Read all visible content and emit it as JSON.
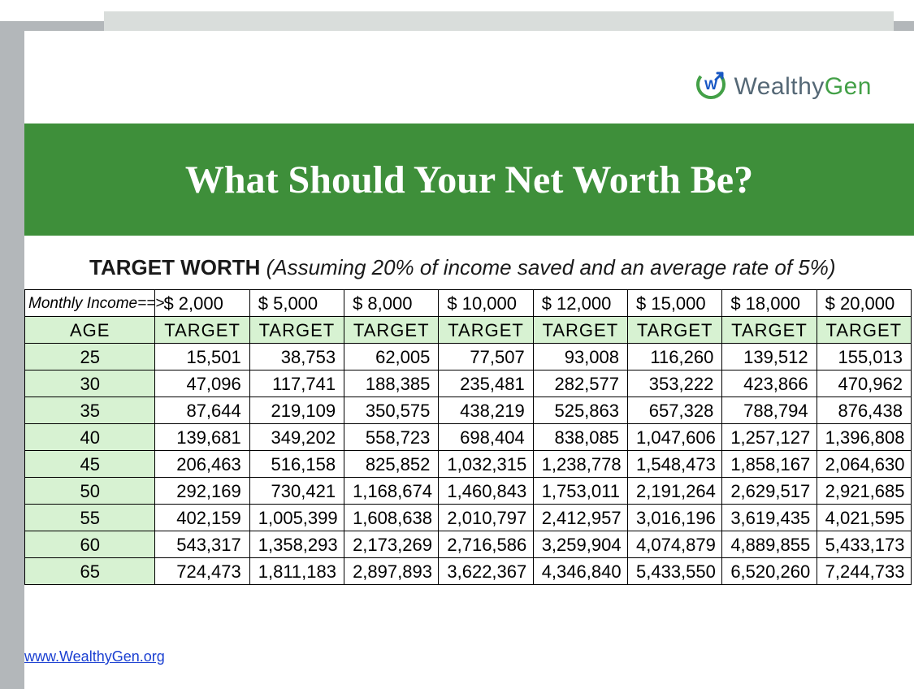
{
  "logo": {
    "brand_a": "Wealthy",
    "brand_b": "Gen",
    "icon_letter": "W"
  },
  "banner": {
    "title": "What Should Your Net Worth Be?"
  },
  "subhead": {
    "bold": "TARGET WORTH",
    "italic": " (Assuming 20% of income saved and an average rate of 5%)"
  },
  "table": {
    "type": "table",
    "monthly_income_label": "Monthly Income==>",
    "age_label": "AGE",
    "target_label": "TARGET",
    "income_columns": [
      "$  2,000",
      "$  5,000",
      "$  8,000",
      "$ 10,000",
      "$ 12,000",
      "$ 15,000",
      "$ 18,000",
      "$ 20,000"
    ],
    "ages": [
      "25",
      "30",
      "35",
      "40",
      "45",
      "50",
      "55",
      "60",
      "65"
    ],
    "rows": [
      [
        "15,501",
        "38,753",
        "62,005",
        "77,507",
        "93,008",
        "116,260",
        "139,512",
        "155,013"
      ],
      [
        "47,096",
        "117,741",
        "188,385",
        "235,481",
        "282,577",
        "353,222",
        "423,866",
        "470,962"
      ],
      [
        "87,644",
        "219,109",
        "350,575",
        "438,219",
        "525,863",
        "657,328",
        "788,794",
        "876,438"
      ],
      [
        "139,681",
        "349,202",
        "558,723",
        "698,404",
        "838,085",
        "1,047,606",
        "1,257,127",
        "1,396,808"
      ],
      [
        "206,463",
        "516,158",
        "825,852",
        "1,032,315",
        "1,238,778",
        "1,548,473",
        "1,858,167",
        "2,064,630"
      ],
      [
        "292,169",
        "730,421",
        "1,168,674",
        "1,460,843",
        "1,753,011",
        "2,191,264",
        "2,629,517",
        "2,921,685"
      ],
      [
        "402,159",
        "1,005,399",
        "1,608,638",
        "2,010,797",
        "2,412,957",
        "3,016,196",
        "3,619,435",
        "4,021,595"
      ],
      [
        "543,317",
        "1,358,293",
        "2,173,269",
        "2,716,586",
        "3,259,904",
        "4,074,879",
        "4,889,855",
        "5,433,173"
      ],
      [
        "724,473",
        "1,811,183",
        "2,897,893",
        "3,622,367",
        "4,346,840",
        "5,433,550",
        "6,520,260",
        "7,244,733"
      ]
    ],
    "header_bg": "#d7f2d2",
    "age_col_bg": "#d7f2d2",
    "border_color": "#000000",
    "font_size": 22
  },
  "colors": {
    "page_bg": "#ffffff",
    "outer_bg": "#b3b7ba",
    "banner_bg": "#3e8f3a",
    "banner_text": "#ffffff",
    "link": "#1a3fd1",
    "logo_gray": "#556876",
    "logo_green": "#43a047"
  },
  "link": {
    "text": "www.WealthyGen.org"
  }
}
